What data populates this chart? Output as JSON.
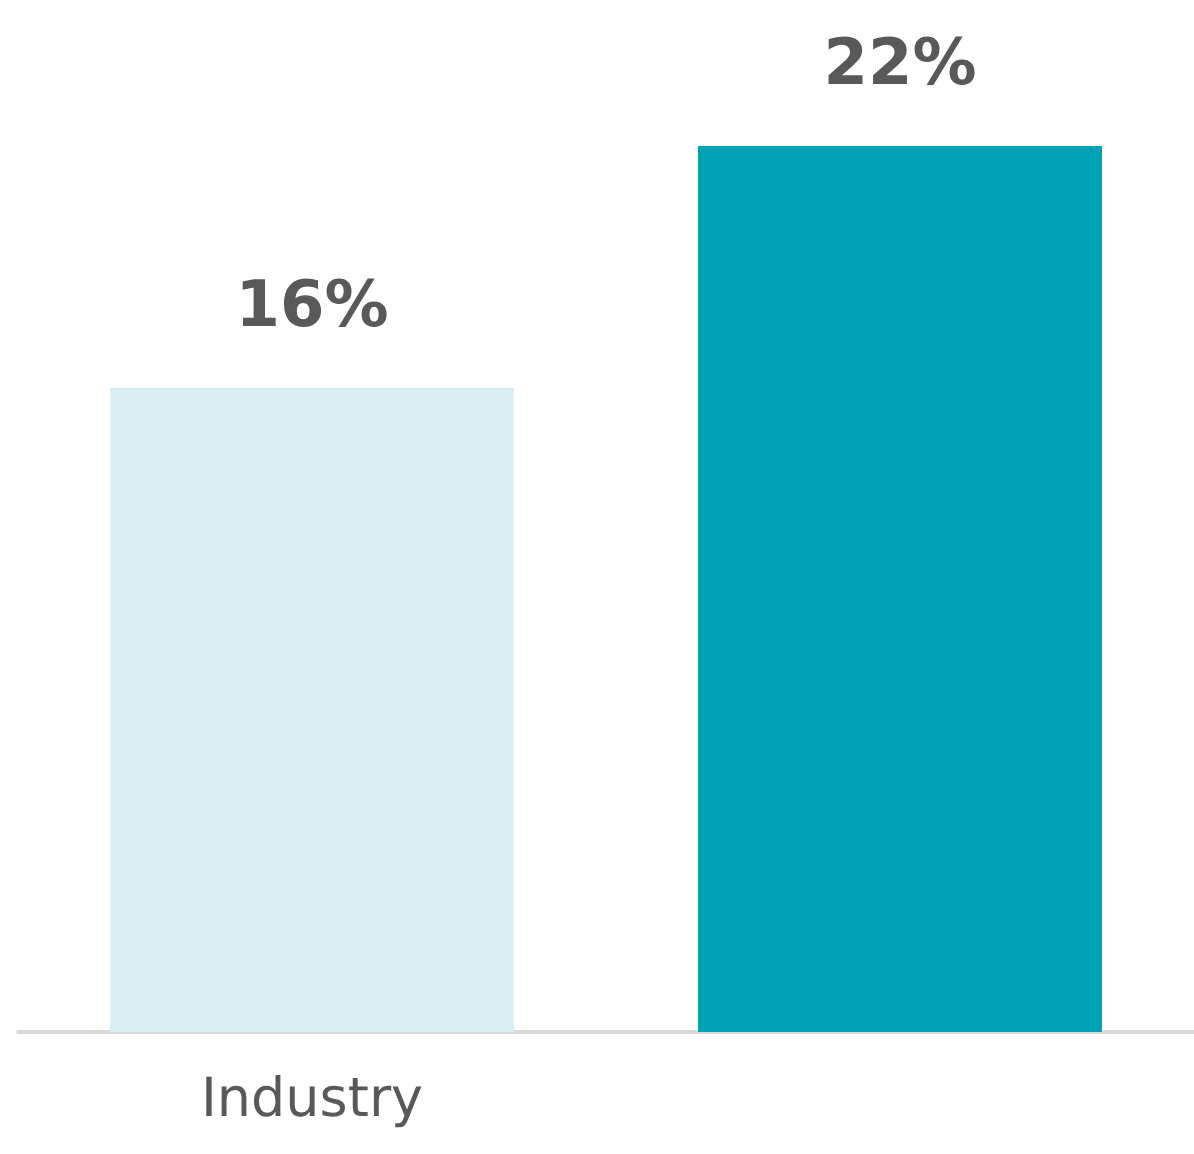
{
  "chart_data": {
    "type": "bar",
    "categories": [
      "Industry",
      null
    ],
    "values": [
      16,
      22
    ],
    "colors": [
      "#d9eff3",
      "#00a3b6"
    ],
    "value_labels": [
      "16%",
      "22%"
    ]
  }
}
